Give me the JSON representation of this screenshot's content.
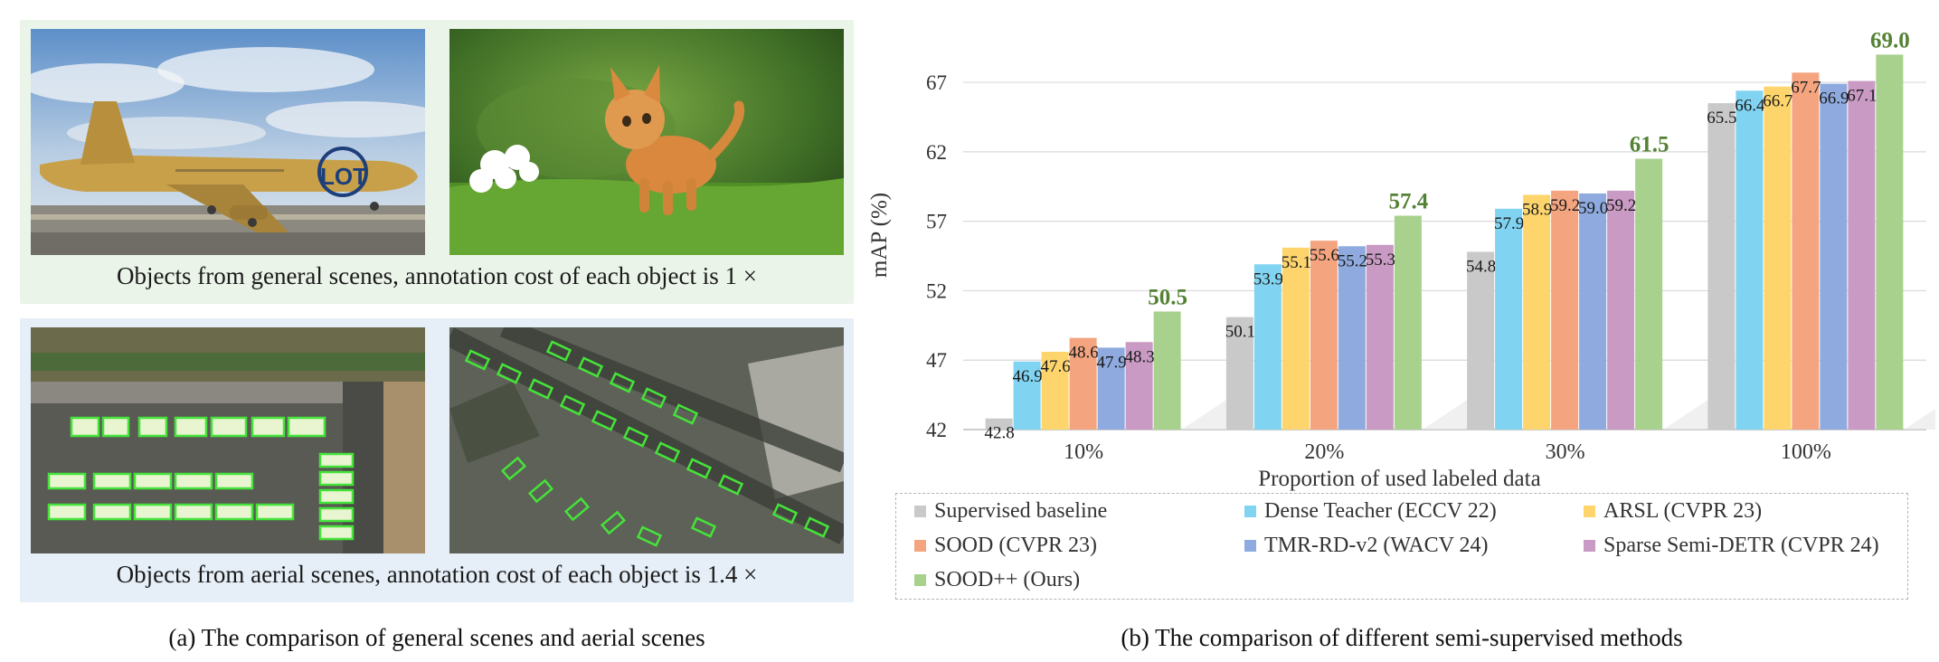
{
  "left_panel": {
    "general_caption": "Objects from general scenes, annotation cost of each object is 1 ×",
    "aerial_caption": "Objects from aerial scenes, annotation cost of each object is 1.4 ×",
    "panel_caption": "(a) The comparison of general scenes and aerial scenes",
    "airplane_livery": "LOT"
  },
  "right_panel": {
    "panel_caption": "(b) The comparison of different semi-supervised methods"
  },
  "chart_data": {
    "type": "bar",
    "title": "",
    "xlabel": "Proportion of used labeled data",
    "ylabel": "mAP (%)",
    "ylim": [
      42,
      70
    ],
    "yticks": [
      42,
      47,
      52,
      57,
      62,
      67
    ],
    "grid": true,
    "categories": [
      "10%",
      "20%",
      "30%",
      "100%"
    ],
    "series": [
      {
        "name": "Supervised baseline",
        "color": "#c9c9c9",
        "values": [
          42.8,
          50.1,
          54.8,
          65.5
        ],
        "labels": [
          "42.8",
          "50.1",
          "54.8",
          "65.5"
        ]
      },
      {
        "name": "Dense Teacher (ECCV 22)",
        "color": "#80d3f1",
        "values": [
          46.9,
          53.9,
          57.9,
          66.4
        ],
        "labels": [
          "46.9",
          "53.9",
          "57.9",
          "66.4"
        ]
      },
      {
        "name": "ARSL (CVPR 23)",
        "color": "#fdd56c",
        "values": [
          47.6,
          55.1,
          58.9,
          66.7
        ],
        "labels": [
          "47.6",
          "55.1",
          "58.9",
          "66.7"
        ]
      },
      {
        "name": "SOOD (CVPR 23)",
        "color": "#f4a47f",
        "values": [
          48.6,
          55.6,
          59.2,
          67.7
        ],
        "labels": [
          "48.6",
          "55.6",
          "59.2",
          "67.7"
        ]
      },
      {
        "name": "TMR-RD-v2 (WACV 24)",
        "color": "#8eaadf",
        "values": [
          47.9,
          55.2,
          59.0,
          66.9
        ],
        "labels": [
          "47.9",
          "55.2",
          "59.0",
          "66.9"
        ]
      },
      {
        "name": "Sparse Semi-DETR (CVPR 24)",
        "color": "#c99ac3",
        "values": [
          48.3,
          55.3,
          59.2,
          67.1
        ],
        "labels": [
          "48.3",
          "55.3",
          "59.2",
          "67.1"
        ]
      },
      {
        "name": "SOOD++ (Ours)",
        "color": "#a8d18d",
        "values": [
          50.5,
          57.4,
          61.5,
          69.0
        ],
        "labels": [
          "50.5",
          "57.4",
          "61.5",
          "69.0"
        ]
      }
    ],
    "highlight_series": "SOOD++ (Ours)",
    "highlight_label_color": "#548235",
    "legend_position": "bottom"
  }
}
